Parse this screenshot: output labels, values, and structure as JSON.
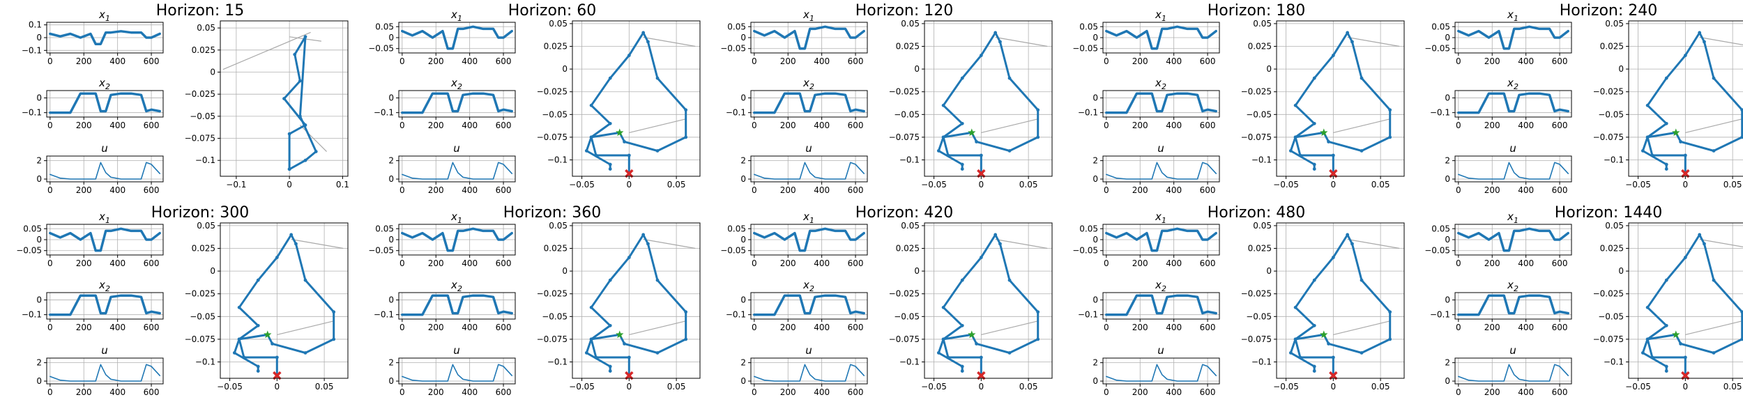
{
  "colors": {
    "trajectory": "#1f77b4",
    "jumps": "#a9a9a9",
    "start_marker": "#2ca02c",
    "target_marker": "#d62728",
    "grid": "#b0b0b0",
    "axes": "#000000"
  },
  "chart_data": {
    "type": "line",
    "layout": "2 rows x 5 columns of panels; each panel has three stacked time-series plots (x1, x2, u) on the left and a phase-portrait line plot (x2 vs x1) on the right",
    "grid": true,
    "legend": "none",
    "time_series": {
      "x": [
        0,
        60,
        120,
        180,
        240,
        270,
        300,
        330,
        360,
        420,
        480,
        540,
        570,
        600,
        650
      ],
      "x1": {
        "label": "x_1",
        "values": [
          0.03,
          0.01,
          0.03,
          0.0,
          0.03,
          -0.05,
          -0.05,
          0.04,
          0.04,
          0.05,
          0.04,
          0.04,
          0.0,
          0.0,
          0.03
        ],
        "ylim_first_panel": [
          -0.12,
          0.12
        ],
        "yticks_first_panel": [
          -0.1,
          0.0,
          0.1
        ],
        "ylim_other_panels": [
          -0.07,
          0.07
        ],
        "yticks_other_panels": [
          -0.05,
          0.0,
          0.05
        ]
      },
      "x2": {
        "label": "x_2",
        "values": [
          -0.1,
          -0.1,
          -0.1,
          0.03,
          0.03,
          0.03,
          -0.09,
          -0.09,
          0.02,
          0.03,
          0.03,
          0.02,
          -0.09,
          -0.08,
          -0.09
        ],
        "ylim": [
          -0.13,
          0.05
        ],
        "yticks": [
          -0.1,
          0.0
        ]
      },
      "u": {
        "label": "u",
        "values": [
          0.5,
          0.1,
          0.0,
          0.0,
          0.0,
          0.0,
          1.8,
          0.7,
          0.2,
          0.0,
          0.0,
          0.0,
          1.8,
          1.6,
          0.6
        ],
        "ylim": [
          -0.3,
          2.5
        ],
        "yticks": [
          0,
          2
        ]
      },
      "xlim": [
        -20,
        670
      ],
      "xticks": [
        0,
        200,
        400,
        600
      ]
    },
    "phase_portrait": {
      "first_panel": {
        "xlim": [
          -0.13,
          0.11
        ],
        "ylim": [
          -0.118,
          0.058
        ],
        "xticks": [
          -0.1,
          0.0,
          0.1
        ],
        "yticks": [
          -0.1,
          -0.075,
          -0.05,
          -0.025,
          0.0,
          0.025,
          0.05
        ],
        "trajectory": [
          [
            0.0,
            -0.11
          ],
          [
            0.0,
            -0.07
          ],
          [
            0.03,
            -0.06
          ],
          [
            -0.01,
            -0.03
          ],
          [
            0.02,
            -0.01
          ],
          [
            0.01,
            0.02
          ],
          [
            0.03,
            0.04
          ],
          [
            0.02,
            -0.05
          ],
          [
            0.05,
            -0.09
          ],
          [
            0.03,
            -0.1
          ],
          [
            0.0,
            -0.11
          ]
        ],
        "jump_lines": [
          [
            [
              -0.125,
              0.003
            ],
            [
              0.04,
              0.045
            ]
          ],
          [
            [
              0.0,
              0.04
            ],
            [
              0.06,
              0.035
            ]
          ],
          [
            [
              0.02,
              -0.06
            ],
            [
              0.07,
              -0.09
            ]
          ]
        ]
      },
      "other_panels": {
        "xlim": [
          -0.06,
          0.075
        ],
        "ylim": [
          -0.118,
          0.053
        ],
        "xticks": [
          -0.05,
          0.0,
          0.05
        ],
        "yticks": [
          -0.1,
          -0.075,
          -0.05,
          -0.025,
          0.0,
          0.025,
          0.05
        ],
        "trajectory": [
          [
            0.0,
            -0.115
          ],
          [
            0.0,
            -0.095
          ],
          [
            -0.035,
            -0.095
          ],
          [
            -0.04,
            -0.075
          ],
          [
            -0.02,
            -0.06
          ],
          [
            -0.04,
            -0.04
          ],
          [
            -0.02,
            -0.01
          ],
          [
            0.0,
            0.015
          ],
          [
            0.015,
            0.04
          ],
          [
            0.02,
            0.03
          ],
          [
            0.03,
            -0.01
          ],
          [
            0.06,
            -0.045
          ],
          [
            0.06,
            -0.075
          ],
          [
            0.03,
            -0.09
          ],
          [
            -0.005,
            -0.08
          ],
          [
            -0.01,
            -0.07
          ],
          [
            -0.04,
            -0.075
          ],
          [
            -0.045,
            -0.09
          ],
          [
            -0.02,
            -0.105
          ],
          [
            -0.02,
            -0.11
          ]
        ],
        "jump_lines": [
          [
            [
              0.015,
              0.035
            ],
            [
              0.07,
              0.025
            ]
          ],
          [
            [
              0.0,
              -0.07
            ],
            [
              0.06,
              -0.055
            ]
          ]
        ]
      },
      "start_point": [
        -0.01,
        -0.07
      ],
      "target_point": [
        0.0,
        -0.115
      ]
    },
    "panels": [
      {
        "title": "Horizon: 15"
      },
      {
        "title": "Horizon: 60"
      },
      {
        "title": "Horizon: 120"
      },
      {
        "title": "Horizon: 180"
      },
      {
        "title": "Horizon: 240"
      },
      {
        "title": "Horizon: 300"
      },
      {
        "title": "Horizon: 360"
      },
      {
        "title": "Horizon: 420"
      },
      {
        "title": "Horizon: 480"
      },
      {
        "title": "Horizon: 1440"
      }
    ]
  }
}
